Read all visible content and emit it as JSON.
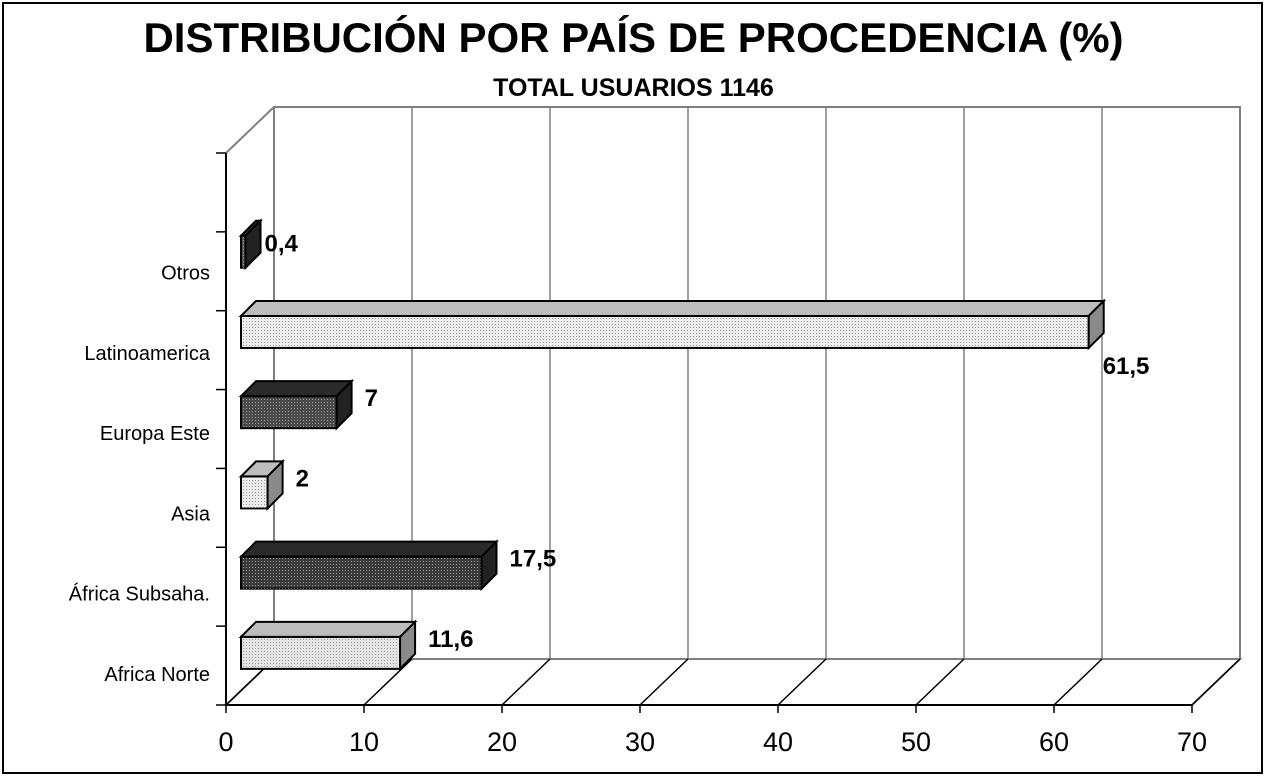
{
  "chart_data": {
    "type": "bar",
    "orientation": "horizontal",
    "title": "DISTRIBUCIÓN POR PAÍS DE PROCEDENCIA (%)",
    "subtitle": "TOTAL USUARIOS 1146",
    "categories": [
      "Africa Norte",
      "África Subsaha.",
      "Asia",
      "Europa Este",
      "Latinoamerica",
      "Otros"
    ],
    "values": [
      11.6,
      17.5,
      2,
      7,
      61.5,
      0.4
    ],
    "value_labels": [
      "11,6",
      "17,5",
      "2",
      "7",
      "61,5",
      "0,4"
    ],
    "xlim": [
      0,
      70
    ],
    "x_ticks": [
      0,
      10,
      20,
      30,
      40,
      50,
      60,
      70
    ],
    "xlabel": "",
    "ylabel": "",
    "grid": true,
    "legend": false,
    "style_3d": true,
    "bar_colors": [
      "#e4e4e4",
      "#3a3a3a",
      "#ececec",
      "#4a4a4a",
      "#eeeeee",
      "#555555"
    ]
  }
}
